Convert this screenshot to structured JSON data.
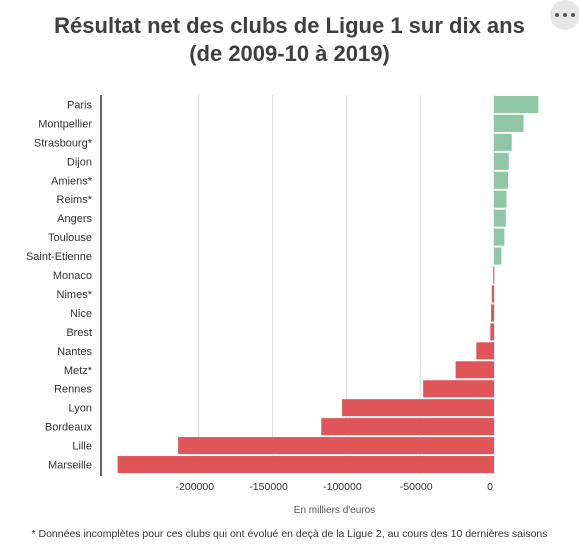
{
  "header": {
    "title": "Résultat net des clubs de Ligue 1 sur dix ans",
    "subtitle": "(de 2009-10 à 2019)"
  },
  "footnote": "* Données incomplètes pour ces clubs qui ont évolué en deçà de la Ligue 2, au cours des 10 dernières saisons",
  "colors": {
    "positive": "#8fc7a6",
    "negative": "#df5558",
    "grid": "#dddddd",
    "axis": "#333333"
  },
  "chart_data": {
    "type": "bar",
    "orientation": "horizontal",
    "title": "Résultat net des clubs de Ligue 1 sur dix ans",
    "subtitle": "(de 2009-10 à 2019)",
    "xlabel": "En milliers d'euros",
    "ylabel": "",
    "xlim": [
      -250000,
      35000
    ],
    "xticks": [
      -200000,
      -150000,
      -100000,
      -50000,
      0
    ],
    "xtick_labels": [
      "-200000",
      "-150000",
      "-100000",
      "-50000",
      "0"
    ],
    "grid": true,
    "categories": [
      "Paris",
      "Montpellier",
      "Strasbourg*",
      "Dijon",
      "Amiens*",
      "Reims*",
      "Angers",
      "Toulouse",
      "Saint-Etienne",
      "Monaco",
      "Nimes*",
      "Nice",
      "Brest",
      "Nantes",
      "Metz*",
      "Rennes",
      "Lyon",
      "Bordeaux",
      "Lille",
      "Marseille"
    ],
    "values": [
      30000,
      20000,
      12000,
      10000,
      9500,
      8500,
      8000,
      7000,
      5000,
      -500,
      -1500,
      -2000,
      -2500,
      -12000,
      -26000,
      -48000,
      -103000,
      -117000,
      -214000,
      -255000
    ]
  }
}
